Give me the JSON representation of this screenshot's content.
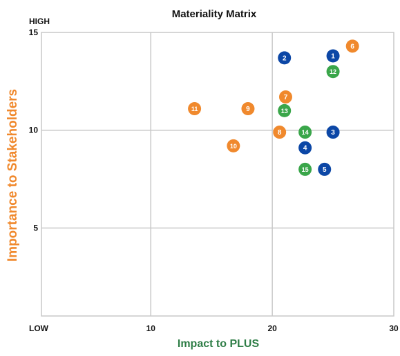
{
  "chart_data": {
    "type": "scatter",
    "title": "Materiality Matrix",
    "xlabel": "Impact to PLUS",
    "ylabel": "Importance to Stakeholders",
    "xlim": [
      1,
      30
    ],
    "ylim": [
      0.5,
      15
    ],
    "x_ticks": [
      10,
      20,
      30
    ],
    "y_ticks": [
      5,
      10,
      15
    ],
    "x_low_label": "LOW",
    "y_high_label": "HIGH",
    "grid": true,
    "colors": {
      "orange": "#f0892d",
      "blue": "#0c47a6",
      "green": "#3aa64a",
      "ylabel": "#f0892d",
      "xlabel": "#2e7d46"
    },
    "points": [
      {
        "label": "1",
        "x": 25.0,
        "y": 13.8,
        "color": "blue"
      },
      {
        "label": "2",
        "x": 21.0,
        "y": 13.7,
        "color": "blue"
      },
      {
        "label": "3",
        "x": 25.0,
        "y": 9.9,
        "color": "blue"
      },
      {
        "label": "4",
        "x": 22.7,
        "y": 9.1,
        "color": "blue"
      },
      {
        "label": "5",
        "x": 24.3,
        "y": 8.0,
        "color": "blue"
      },
      {
        "label": "6",
        "x": 26.6,
        "y": 14.3,
        "color": "orange"
      },
      {
        "label": "7",
        "x": 21.1,
        "y": 11.7,
        "color": "orange"
      },
      {
        "label": "8",
        "x": 20.6,
        "y": 9.9,
        "color": "orange"
      },
      {
        "label": "9",
        "x": 18.0,
        "y": 11.1,
        "color": "orange"
      },
      {
        "label": "10",
        "x": 16.8,
        "y": 9.2,
        "color": "orange"
      },
      {
        "label": "11",
        "x": 13.6,
        "y": 11.1,
        "color": "orange"
      },
      {
        "label": "12",
        "x": 25.0,
        "y": 13.0,
        "color": "green"
      },
      {
        "label": "13",
        "x": 21.0,
        "y": 11.0,
        "color": "green"
      },
      {
        "label": "14",
        "x": 22.7,
        "y": 9.9,
        "color": "green"
      },
      {
        "label": "15",
        "x": 22.7,
        "y": 8.0,
        "color": "green"
      }
    ]
  }
}
